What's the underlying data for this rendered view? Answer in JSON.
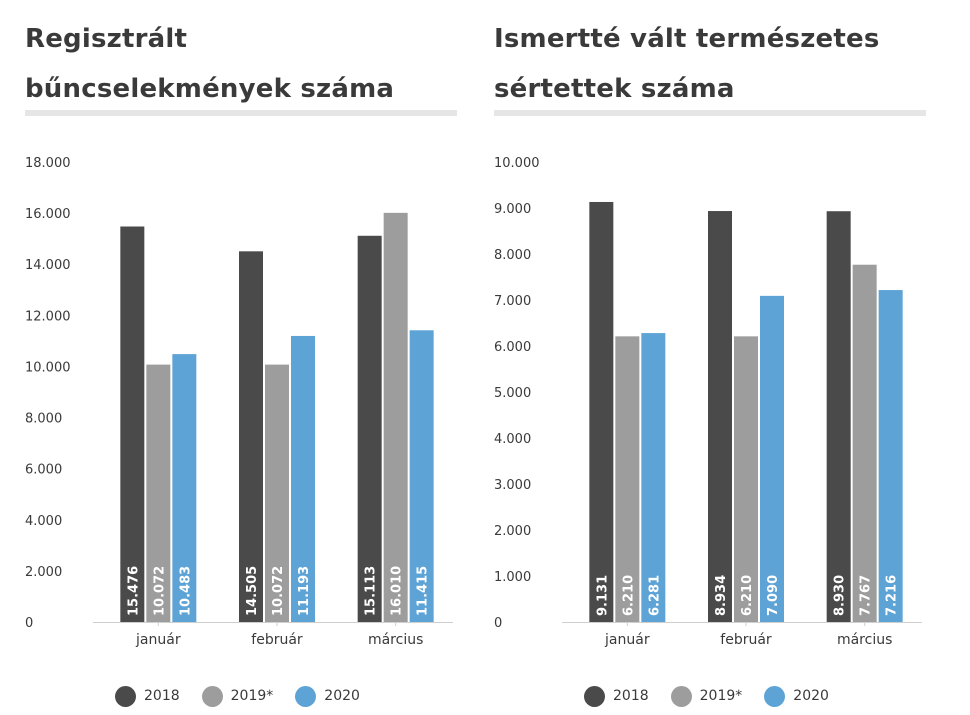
{
  "chart_data": [
    {
      "type": "bar",
      "title": "Regisztrált bűncselekmények száma",
      "categories": [
        "január",
        "február",
        "március"
      ],
      "series": [
        {
          "name": "2018",
          "values": [
            15476,
            14505,
            15113
          ],
          "labels": [
            "15.476",
            "14.505",
            "15.113"
          ]
        },
        {
          "name": "2019*",
          "values": [
            10072,
            10072,
            16010
          ],
          "labels": [
            "10.072",
            "10.072",
            "16.010"
          ]
        },
        {
          "name": "2020",
          "values": [
            10483,
            11193,
            11415
          ],
          "labels": [
            "10.483",
            "11.193",
            "11.415"
          ]
        }
      ],
      "ylim": [
        0,
        18000
      ],
      "yticks": [
        0,
        2000,
        4000,
        6000,
        8000,
        10000,
        12000,
        14000,
        16000,
        18000
      ],
      "ytick_labels": [
        "0",
        "2.000",
        "4.000",
        "6.000",
        "8.000",
        "10.000",
        "12.000",
        "14.000",
        "16.000",
        "18.000"
      ],
      "grid": false,
      "legend": "bottom-center"
    },
    {
      "type": "bar",
      "title": "Ismertté vált természetes sértettek száma",
      "categories": [
        "január",
        "február",
        "március"
      ],
      "series": [
        {
          "name": "2018",
          "values": [
            9131,
            8934,
            8930
          ],
          "labels": [
            "9.131",
            "8.934",
            "8.930"
          ]
        },
        {
          "name": "2019*",
          "values": [
            6210,
            6210,
            7767
          ],
          "labels": [
            "6.210",
            "6.210",
            "7.767"
          ]
        },
        {
          "name": "2020",
          "values": [
            6281,
            7090,
            7216
          ],
          "labels": [
            "6.281",
            "7.090",
            "7.216"
          ]
        }
      ],
      "ylim": [
        0,
        10000
      ],
      "yticks": [
        0,
        1000,
        2000,
        3000,
        4000,
        5000,
        6000,
        7000,
        8000,
        9000,
        10000
      ],
      "ytick_labels": [
        "0",
        "1.000",
        "2.000",
        "3.000",
        "4.000",
        "5.000",
        "6.000",
        "7.000",
        "8.000",
        "9.000",
        "10.000"
      ],
      "grid": false,
      "legend": "bottom-center"
    }
  ],
  "colors": {
    "2018": "#4a4a4a",
    "2019*": "#9d9d9d",
    "2020": "#5ea3d6"
  }
}
